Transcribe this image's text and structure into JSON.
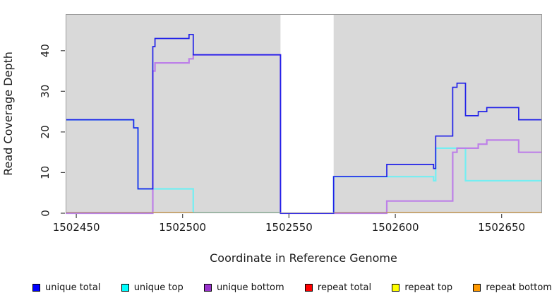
{
  "chart_data": {
    "type": "line",
    "subtype": "step-post",
    "title": "",
    "xlabel": "Coordinate in Reference Genome",
    "ylabel": "Read Coverage Depth",
    "xlim": [
      1502445,
      1502669
    ],
    "ylim": [
      0,
      49
    ],
    "x_ticks": [
      1502450,
      1502500,
      1502550,
      1502600,
      1502650
    ],
    "y_ticks": [
      0,
      10,
      20,
      30,
      40
    ],
    "grid": "off",
    "panel_color": "#d9d9d9",
    "masked_region": {
      "x1": 1502546,
      "x2": 1502571,
      "color": "#ffffff"
    },
    "series": [
      {
        "name": "unique total",
        "color": "#2121e8",
        "stroke_width": 1.7,
        "steps": [
          [
            1502445,
            23
          ],
          [
            1502477,
            21
          ],
          [
            1502479,
            6
          ],
          [
            1502486,
            41
          ],
          [
            1502487,
            43
          ],
          [
            1502503,
            44
          ],
          [
            1502505,
            39
          ],
          [
            1502546,
            0
          ],
          [
            1502571,
            9
          ],
          [
            1502596,
            12
          ],
          [
            1502618,
            11
          ],
          [
            1502619,
            19
          ],
          [
            1502627,
            31
          ],
          [
            1502629,
            32
          ],
          [
            1502633,
            24
          ],
          [
            1502639,
            25
          ],
          [
            1502643,
            26
          ],
          [
            1502658,
            23
          ],
          [
            1502669,
            23
          ]
        ]
      },
      {
        "name": "unique top",
        "color": "#74eef2",
        "stroke_width": 2.2,
        "parts": [
          [
            [
              1502445,
              23
            ],
            [
              1502477,
              21
            ],
            [
              1502479,
              6
            ],
            [
              1502505,
              0
            ]
          ],
          [
            [
              1502571,
              0
            ],
            [
              1502571,
              9
            ],
            [
              1502618,
              8
            ],
            [
              1502619,
              16
            ],
            [
              1502633,
              8
            ],
            [
              1502669,
              8
            ]
          ]
        ]
      },
      {
        "name": "unique bottom",
        "color": "#bd80e8",
        "stroke_width": 2.2,
        "steps": [
          [
            1502445,
            0
          ],
          [
            1502486,
            35
          ],
          [
            1502487,
            37
          ],
          [
            1502503,
            38
          ],
          [
            1502505,
            39
          ],
          [
            1502546,
            0
          ],
          [
            1502596,
            3
          ],
          [
            1502627,
            15
          ],
          [
            1502629,
            16
          ],
          [
            1502639,
            17
          ],
          [
            1502643,
            18
          ],
          [
            1502658,
            15
          ],
          [
            1502669,
            15
          ]
        ]
      }
    ],
    "baseline_segments": [
      {
        "series": "repeat total",
        "value": 0,
        "x1": 1502445,
        "x2": 1502486,
        "color": "#cd5a86"
      },
      {
        "series": "repeat bottom",
        "value": 0,
        "x1": 1502486,
        "x2": 1502505,
        "color": "#ff9a00"
      },
      {
        "series": "repeat top",
        "value": 0,
        "x1": 1502505,
        "x2": 1502546,
        "color": "#7dc998"
      },
      {
        "series": "repeat total",
        "value": 0,
        "x1": 1502571,
        "x2": 1502596,
        "color": "#cd5a86"
      },
      {
        "series": "repeat bottom",
        "value": 0,
        "x1": 1502596,
        "x2": 1502669,
        "color": "#ff9a00"
      }
    ],
    "legend": [
      {
        "label": "unique total",
        "color": "#0000ff"
      },
      {
        "label": "unique top",
        "color": "#00ffff"
      },
      {
        "label": "unique bottom",
        "color": "#9933cc"
      },
      {
        "label": "repeat total",
        "color": "#ff0000"
      },
      {
        "label": "repeat top",
        "color": "#ffff00"
      },
      {
        "label": "repeat bottom",
        "color": "#ff9900"
      }
    ],
    "legend_position": "bottom"
  }
}
